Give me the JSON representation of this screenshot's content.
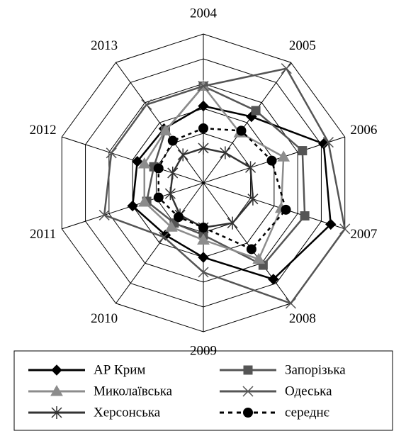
{
  "chart_data": {
    "type": "radar",
    "categories": [
      "2004",
      "2005",
      "2006",
      "2007",
      "2008",
      "2009",
      "2010",
      "2011",
      "2012",
      "2013"
    ],
    "ylim": [
      0,
      6
    ],
    "yticks": [
      2,
      3,
      4,
      5,
      6
    ],
    "grid": true,
    "series": [
      {
        "name": "АР Крим",
        "color": "#000000",
        "marker": "diamond",
        "line_style": "solid",
        "values": [
          3.1,
          3.3,
          5.1,
          5.4,
          4.8,
          3.0,
          2.6,
          3.0,
          2.8,
          2.7
        ]
      },
      {
        "name": "Запорізька",
        "color": "#555555",
        "marker": "square",
        "line_style": "solid",
        "values": [
          3.9,
          3.6,
          4.2,
          4.3,
          4.1,
          2.1,
          2.0,
          2.4,
          2.1,
          2.6
        ]
      },
      {
        "name": "Миколаївська",
        "color": "#8c8c8c",
        "marker": "triangle",
        "line_style": "solid",
        "values": [
          3.9,
          2.5,
          3.4,
          3.3,
          3.8,
          2.3,
          2.2,
          2.5,
          2.5,
          2.6
        ]
      },
      {
        "name": "Одеська",
        "color": "#555555",
        "marker": "x",
        "line_style": "solid",
        "values": [
          3.9,
          5.7,
          5.3,
          6.0,
          6.0,
          3.6,
          2.7,
          4.2,
          3.9,
          3.9
        ]
      },
      {
        "name": "Херсонська",
        "color": "#333333",
        "marker": "asterisk",
        "line_style": "solid",
        "values": [
          1.4,
          1.5,
          2.0,
          2.1,
          2.0,
          1.8,
          1.6,
          1.4,
          1.3,
          1.4
        ]
      },
      {
        "name": "середнє",
        "color": "#000000",
        "marker": "circle",
        "line_style": "dashed",
        "values": [
          2.2,
          2.6,
          2.9,
          3.5,
          3.3,
          1.8,
          1.7,
          1.9,
          1.9,
          2.1
        ]
      }
    ]
  }
}
